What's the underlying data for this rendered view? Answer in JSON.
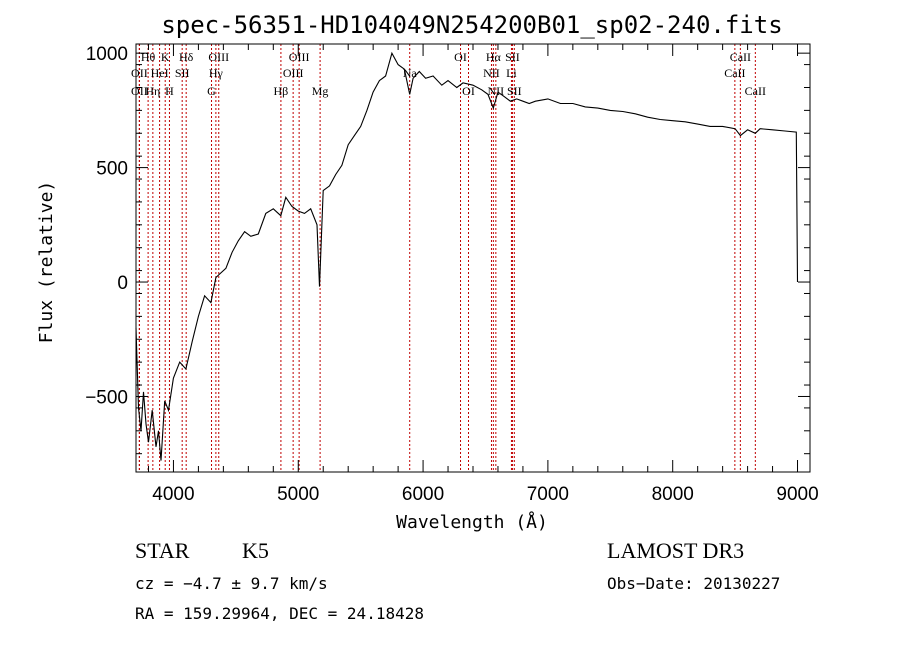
{
  "chart_data": {
    "type": "line",
    "title": "spec-56351-HD104049N254200B01_sp02-240.fits",
    "xlabel": "Wavelength (Å)",
    "ylabel": "Flux (relative)",
    "xlim": [
      3700,
      9100
    ],
    "ylim": [
      -830,
      1040
    ],
    "xticks": [
      4000,
      5000,
      6000,
      7000,
      8000,
      9000
    ],
    "yticks": [
      -500,
      0,
      500,
      1000
    ],
    "series": [
      {
        "name": "spectrum",
        "x": [
          3700,
          3720,
          3740,
          3760,
          3780,
          3800,
          3830,
          3860,
          3880,
          3900,
          3930,
          3960,
          4000,
          4050,
          4100,
          4150,
          4200,
          4250,
          4300,
          4340,
          4380,
          4420,
          4470,
          4520,
          4570,
          4620,
          4680,
          4740,
          4800,
          4860,
          4900,
          4950,
          5000,
          5050,
          5100,
          5150,
          5170,
          5200,
          5250,
          5300,
          5350,
          5400,
          5450,
          5500,
          5550,
          5600,
          5650,
          5700,
          5750,
          5800,
          5850,
          5893,
          5920,
          5970,
          6020,
          6080,
          6150,
          6200,
          6270,
          6320,
          6400,
          6470,
          6520,
          6563,
          6600,
          6650,
          6700,
          6750,
          6800,
          6850,
          6900,
          7000,
          7100,
          7200,
          7300,
          7400,
          7500,
          7600,
          7700,
          7800,
          7900,
          8000,
          8100,
          8200,
          8300,
          8400,
          8500,
          8542,
          8600,
          8662,
          8700,
          8800,
          8900,
          8990,
          9000
        ],
        "y": [
          -200,
          -550,
          -650,
          -480,
          -620,
          -700,
          -560,
          -720,
          -650,
          -780,
          -520,
          -560,
          -420,
          -350,
          -380,
          -260,
          -150,
          -60,
          -90,
          20,
          40,
          60,
          130,
          180,
          220,
          200,
          210,
          300,
          320,
          290,
          370,
          330,
          310,
          300,
          320,
          250,
          -20,
          400,
          420,
          470,
          510,
          600,
          640,
          680,
          750,
          830,
          880,
          900,
          1000,
          950,
          930,
          820,
          890,
          920,
          890,
          900,
          860,
          880,
          850,
          870,
          860,
          840,
          820,
          760,
          830,
          810,
          790,
          800,
          790,
          780,
          790,
          800,
          780,
          780,
          765,
          760,
          750,
          745,
          735,
          720,
          710,
          705,
          700,
          690,
          680,
          680,
          670,
          640,
          665,
          650,
          670,
          665,
          660,
          655,
          0
        ]
      }
    ],
    "lines": [
      {
        "label": "Hθ",
        "x": 3797,
        "row": 0
      },
      {
        "label": "OII",
        "x": 3727,
        "row": 1
      },
      {
        "label": "OII",
        "x": 3727,
        "row": 2
      },
      {
        "label": "Hη",
        "x": 3835,
        "row": 2
      },
      {
        "label": "HeI",
        "x": 3889,
        "row": 1
      },
      {
        "label": "K",
        "x": 3934,
        "row": 0
      },
      {
        "label": "H",
        "x": 3968,
        "row": 2
      },
      {
        "label": "SII",
        "x": 4070,
        "row": 1
      },
      {
        "label": "Hδ",
        "x": 4102,
        "row": 0
      },
      {
        "label": "OIII",
        "x": 4363,
        "row": 0
      },
      {
        "label": "Hγ",
        "x": 4340,
        "row": 1
      },
      {
        "label": "G",
        "x": 4305,
        "row": 2
      },
      {
        "label": "Hβ",
        "x": 4861,
        "row": 2
      },
      {
        "label": "OIII",
        "x": 4959,
        "row": 1
      },
      {
        "label": "OIII",
        "x": 5007,
        "row": 0
      },
      {
        "label": "Mg",
        "x": 5175,
        "row": 2
      },
      {
        "label": "Na",
        "x": 5893,
        "row": 1
      },
      {
        "label": "OI",
        "x": 6300,
        "row": 0
      },
      {
        "label": "OI",
        "x": 6364,
        "row": 2
      },
      {
        "label": "Hα",
        "x": 6563,
        "row": 0
      },
      {
        "label": "NII",
        "x": 6548,
        "row": 1
      },
      {
        "label": "NII",
        "x": 6583,
        "row": 2
      },
      {
        "label": "SII",
        "x": 6716,
        "row": 0
      },
      {
        "label": "Li",
        "x": 6708,
        "row": 1
      },
      {
        "label": "SII",
        "x": 6731,
        "row": 2
      },
      {
        "label": "CaII",
        "x": 8542,
        "row": 0
      },
      {
        "label": "CaII",
        "x": 8498,
        "row": 1
      },
      {
        "label": "CaII",
        "x": 8662,
        "row": 2
      }
    ]
  },
  "info": {
    "object_type": "STAR",
    "subclass": "K5",
    "survey": "LAMOST DR3",
    "cz": "cz = −4.7 ± 9.7 km/s",
    "obs_date": "Obs−Date: 20130227",
    "radec": "RA = 159.29964, DEC =  24.18428"
  }
}
